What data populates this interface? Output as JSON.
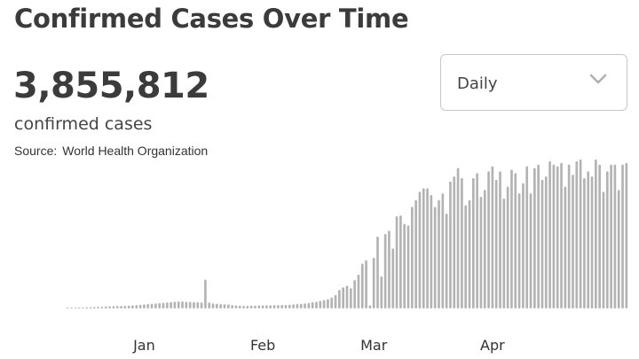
{
  "title": "Confirmed Cases Over Time",
  "summary": {
    "total": "3,855,812",
    "label": "confirmed cases"
  },
  "source": {
    "prefix": "Source:",
    "name": "World Health Organization"
  },
  "dropdown": {
    "selected": "Daily",
    "icon": "chevron-down-icon"
  },
  "colors": {
    "bar": "#b3b3b3",
    "text": "#3b3b3b"
  },
  "chart_data": {
    "type": "bar",
    "title": "Confirmed Cases Over Time",
    "xlabel": "",
    "ylabel": "",
    "x_ticks": [
      {
        "label": "Jan",
        "index": 20
      },
      {
        "label": "Feb",
        "index": 51
      },
      {
        "label": "Mar",
        "index": 80
      },
      {
        "label": "Apr",
        "index": 111
      }
    ],
    "ylim": [
      0,
      100
    ],
    "grid": false,
    "legend": "none",
    "values": [
      0.3,
      0.4,
      0.5,
      0.6,
      0.6,
      0.7,
      0.8,
      0.9,
      1,
      1,
      1.2,
      1.3,
      1.4,
      1.5,
      1.5,
      1.6,
      1.7,
      1.8,
      2,
      2.2,
      2.4,
      2.6,
      2.8,
      3,
      3.2,
      3.4,
      3.6,
      3.8,
      4,
      4.1,
      4.2,
      4,
      3.9,
      3.8,
      3.7,
      3.6,
      17,
      3.5,
      3,
      2.8,
      2.6,
      2.5,
      2.4,
      2,
      1.8,
      1.7,
      1.6,
      1.6,
      1.7,
      1.7,
      1.8,
      1.8,
      1.9,
      1.9,
      2,
      2,
      2.1,
      2.1,
      2.3,
      2.4,
      2.6,
      2.8,
      3,
      3.3,
      3.7,
      4,
      4.5,
      5,
      5.5,
      6.5,
      8,
      11,
      12.5,
      13.5,
      12,
      16.8,
      20,
      26.5,
      28.5,
      1.8,
      30,
      42.5,
      19,
      44,
      46,
      35.5,
      54.5,
      55,
      50,
      49,
      60,
      64,
      69,
      71,
      71,
      67,
      60,
      64,
      68,
      56,
      75,
      78,
      83,
      77,
      61,
      64,
      77,
      80,
      66,
      70,
      81,
      84,
      76,
      81,
      65,
      72,
      82,
      80,
      68,
      74,
      84,
      68,
      83,
      85,
      76,
      78,
      87,
      85,
      84,
      86,
      72,
      85,
      79,
      87,
      88,
      77,
      81,
      78,
      88,
      85,
      69,
      81,
      85,
      85,
      70,
      85,
      86
    ]
  }
}
